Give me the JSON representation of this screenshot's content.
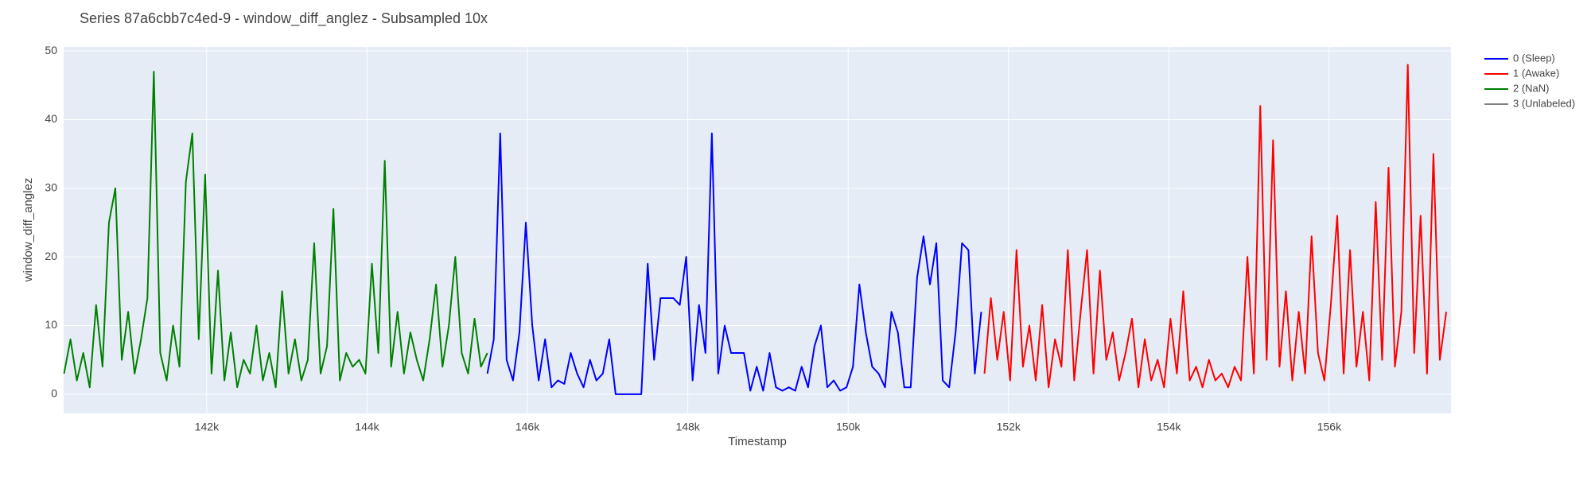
{
  "chart_data": {
    "type": "line",
    "title": "Series 87a6cbb7c4ed-9 - window_diff_anglez - Subsampled 10x",
    "xlabel": "Timestamp",
    "ylabel": "window_diff_anglez",
    "xlim": [
      140215,
      157519
    ],
    "ylim": [
      -2.8,
      50.6
    ],
    "xticks": [
      {
        "value": 142000,
        "label": "142k"
      },
      {
        "value": 144000,
        "label": "144k"
      },
      {
        "value": 146000,
        "label": "146k"
      },
      {
        "value": 148000,
        "label": "148k"
      },
      {
        "value": 150000,
        "label": "150k"
      },
      {
        "value": 152000,
        "label": "152k"
      },
      {
        "value": 154000,
        "label": "154k"
      },
      {
        "value": 156000,
        "label": "156k"
      }
    ],
    "yticks": [
      0,
      10,
      20,
      30,
      40,
      50
    ],
    "grid": true,
    "legend": "right",
    "series": [
      {
        "name": "0 (Sleep)",
        "color": "#0000ff",
        "x": [
          145500,
          145580,
          145660,
          145740,
          145820,
          145900,
          145980,
          146060,
          146140,
          146220,
          146300,
          146380,
          146460,
          146540,
          146620,
          146700,
          146780,
          146860,
          146940,
          147020,
          147100,
          147180,
          147260,
          147340,
          147420,
          147500,
          147580,
          147660,
          147740,
          147820,
          147900,
          147980,
          148060,
          148140,
          148220,
          148300,
          148380,
          148460,
          148540,
          148620,
          148700,
          148780,
          148860,
          148940,
          149020,
          149100,
          149180,
          149260,
          149340,
          149420,
          149500,
          149580,
          149660,
          149740,
          149820,
          149900,
          149980,
          150060,
          150140,
          150220,
          150300,
          150380,
          150460,
          150540,
          150620,
          150700,
          150780,
          150860,
          150940,
          151020,
          151100,
          151180,
          151260,
          151340,
          151420,
          151500,
          151580,
          151660
        ],
        "values": [
          3,
          8,
          38,
          5,
          2,
          9,
          25,
          10,
          2,
          8,
          1,
          2,
          1.5,
          6,
          3,
          1,
          5,
          2,
          3,
          8,
          0,
          0,
          0,
          0,
          0,
          19,
          5,
          14,
          14,
          14,
          13,
          20,
          2,
          13,
          6,
          38,
          3,
          10,
          6,
          6,
          6,
          0.5,
          4,
          0.5,
          6,
          1,
          0.5,
          1,
          0.5,
          4,
          1,
          7,
          10,
          1,
          2,
          0.5,
          1,
          4,
          16,
          9,
          4,
          3,
          1,
          12,
          9,
          1,
          1,
          17,
          23,
          16,
          22,
          2,
          1,
          9,
          22,
          21,
          3,
          12
        ]
      },
      {
        "name": "1 (Awake)",
        "color": "#ff0000",
        "x": [
          151700,
          151780,
          151860,
          151940,
          152020,
          152100,
          152180,
          152260,
          152340,
          152420,
          152500,
          152580,
          152660,
          152740,
          152820,
          152900,
          152980,
          153060,
          153140,
          153220,
          153300,
          153380,
          153460,
          153540,
          153620,
          153700,
          153780,
          153860,
          153940,
          154020,
          154100,
          154180,
          154260,
          154340,
          154420,
          154500,
          154580,
          154660,
          154740,
          154820,
          154900,
          154980,
          155060,
          155140,
          155220,
          155300,
          155380,
          155460,
          155540,
          155620,
          155700,
          155780,
          155860,
          155940,
          156020,
          156100,
          156180,
          156260,
          156340,
          156420,
          156500,
          156580,
          156660,
          156740,
          156820,
          156900,
          156980,
          157060,
          157140,
          157220,
          157300,
          157380,
          157460
        ],
        "values": [
          3,
          14,
          5,
          12,
          2,
          21,
          4,
          10,
          2,
          13,
          1,
          8,
          4,
          21,
          2,
          12,
          21,
          3,
          18,
          5,
          9,
          2,
          6,
          11,
          1,
          8,
          2,
          5,
          1,
          11,
          3,
          15,
          2,
          4,
          1,
          5,
          2,
          3,
          1,
          4,
          2,
          20,
          3,
          42,
          5,
          37,
          4,
          15,
          2,
          12,
          3,
          23,
          6,
          2,
          13,
          26,
          3,
          21,
          4,
          12,
          2,
          28,
          5,
          33,
          4,
          12,
          48,
          6,
          26,
          3,
          35,
          5,
          12
        ]
      },
      {
        "name": "2 (NaN)",
        "color": "#008000",
        "x": [
          140220,
          140300,
          140380,
          140460,
          140540,
          140620,
          140700,
          140780,
          140860,
          140940,
          141020,
          141100,
          141180,
          141260,
          141340,
          141420,
          141500,
          141580,
          141660,
          141740,
          141820,
          141900,
          141980,
          142060,
          142140,
          142220,
          142300,
          142380,
          142460,
          142540,
          142620,
          142700,
          142780,
          142860,
          142940,
          143020,
          143100,
          143180,
          143260,
          143340,
          143420,
          143500,
          143580,
          143660,
          143740,
          143820,
          143900,
          143980,
          144060,
          144140,
          144220,
          144300,
          144380,
          144460,
          144540,
          144620,
          144700,
          144780,
          144860,
          144940,
          145020,
          145100,
          145180,
          145260,
          145340,
          145420,
          145500
        ],
        "values": [
          3,
          8,
          2,
          6,
          1,
          13,
          4,
          25,
          30,
          5,
          12,
          3,
          8,
          14,
          47,
          6,
          2,
          10,
          4,
          31,
          38,
          8,
          32,
          3,
          18,
          2,
          9,
          1,
          5,
          3,
          10,
          2,
          6,
          1,
          15,
          3,
          8,
          2,
          5,
          22,
          3,
          7,
          27,
          2,
          6,
          4,
          5,
          3,
          19,
          6,
          34,
          4,
          12,
          3,
          9,
          5,
          2,
          8,
          16,
          4,
          10,
          20,
          6,
          3,
          11,
          4,
          6
        ]
      },
      {
        "name": "3 (Unlabeled)",
        "color": "#808080",
        "x": [],
        "values": []
      }
    ]
  }
}
